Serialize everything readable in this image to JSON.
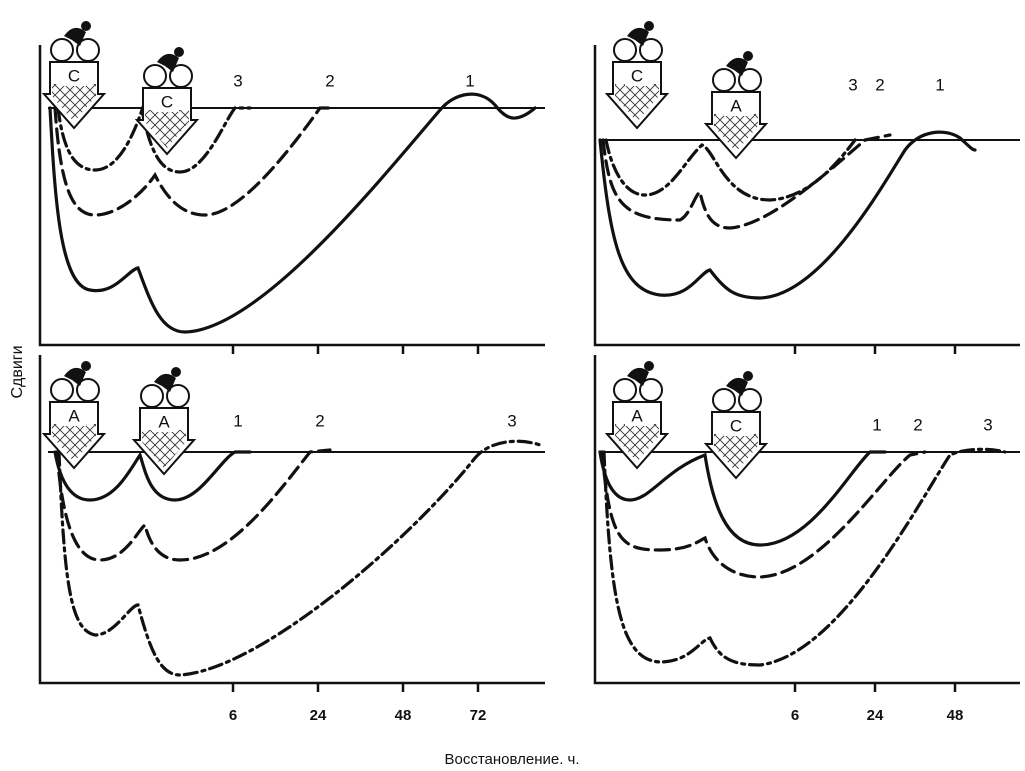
{
  "y_axis_label": "Сдвиги",
  "x_axis_label": "Восстановление. ч.",
  "panels": [
    {
      "badges": [
        "C",
        "C"
      ],
      "curve_labels": [
        "3",
        "2",
        "1"
      ],
      "x_ticks": []
    },
    {
      "badges": [
        "C",
        "A"
      ],
      "curve_labels": [
        "3",
        "2",
        "1"
      ],
      "x_ticks": []
    },
    {
      "badges": [
        "A",
        "A"
      ],
      "curve_labels": [
        "1",
        "2",
        "3"
      ],
      "x_ticks": [
        "6",
        "24",
        "48",
        "72"
      ]
    },
    {
      "badges": [
        "A",
        "C"
      ],
      "curve_labels": [
        "1",
        "2",
        "3"
      ],
      "x_ticks": [
        "6",
        "24",
        "48"
      ]
    }
  ]
}
